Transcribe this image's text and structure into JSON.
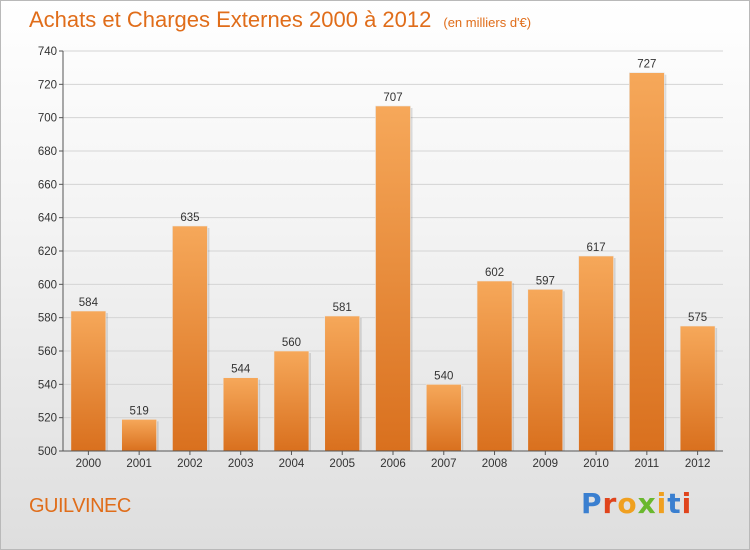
{
  "title": "Achats et Charges Externes 2000 à 2012",
  "unit": "(en milliers d'€)",
  "location": "GUILVINEC",
  "brand": "Proxiti",
  "colors": {
    "title": "#e06d1a",
    "bar_top": "#f6a85a",
    "bar_bottom": "#d9701e",
    "brand_letters": [
      "#3a7fd0",
      "#e0441c",
      "#f0a020",
      "#6ab82e",
      "#f0a020",
      "#3a7fd0",
      "#e0441c"
    ]
  },
  "chart_data": {
    "type": "bar",
    "title": "Achats et Charges Externes 2000 à 2012",
    "xlabel": "",
    "ylabel": "",
    "categories": [
      "2000",
      "2001",
      "2002",
      "2003",
      "2004",
      "2005",
      "2006",
      "2007",
      "2008",
      "2009",
      "2010",
      "2011",
      "2012"
    ],
    "values": [
      584,
      519,
      635,
      544,
      560,
      581,
      707,
      540,
      602,
      597,
      617,
      727,
      575
    ],
    "ylim": [
      500,
      740
    ],
    "yticks": [
      500,
      520,
      540,
      560,
      580,
      600,
      620,
      640,
      660,
      680,
      700,
      720,
      740
    ],
    "grid": true
  }
}
